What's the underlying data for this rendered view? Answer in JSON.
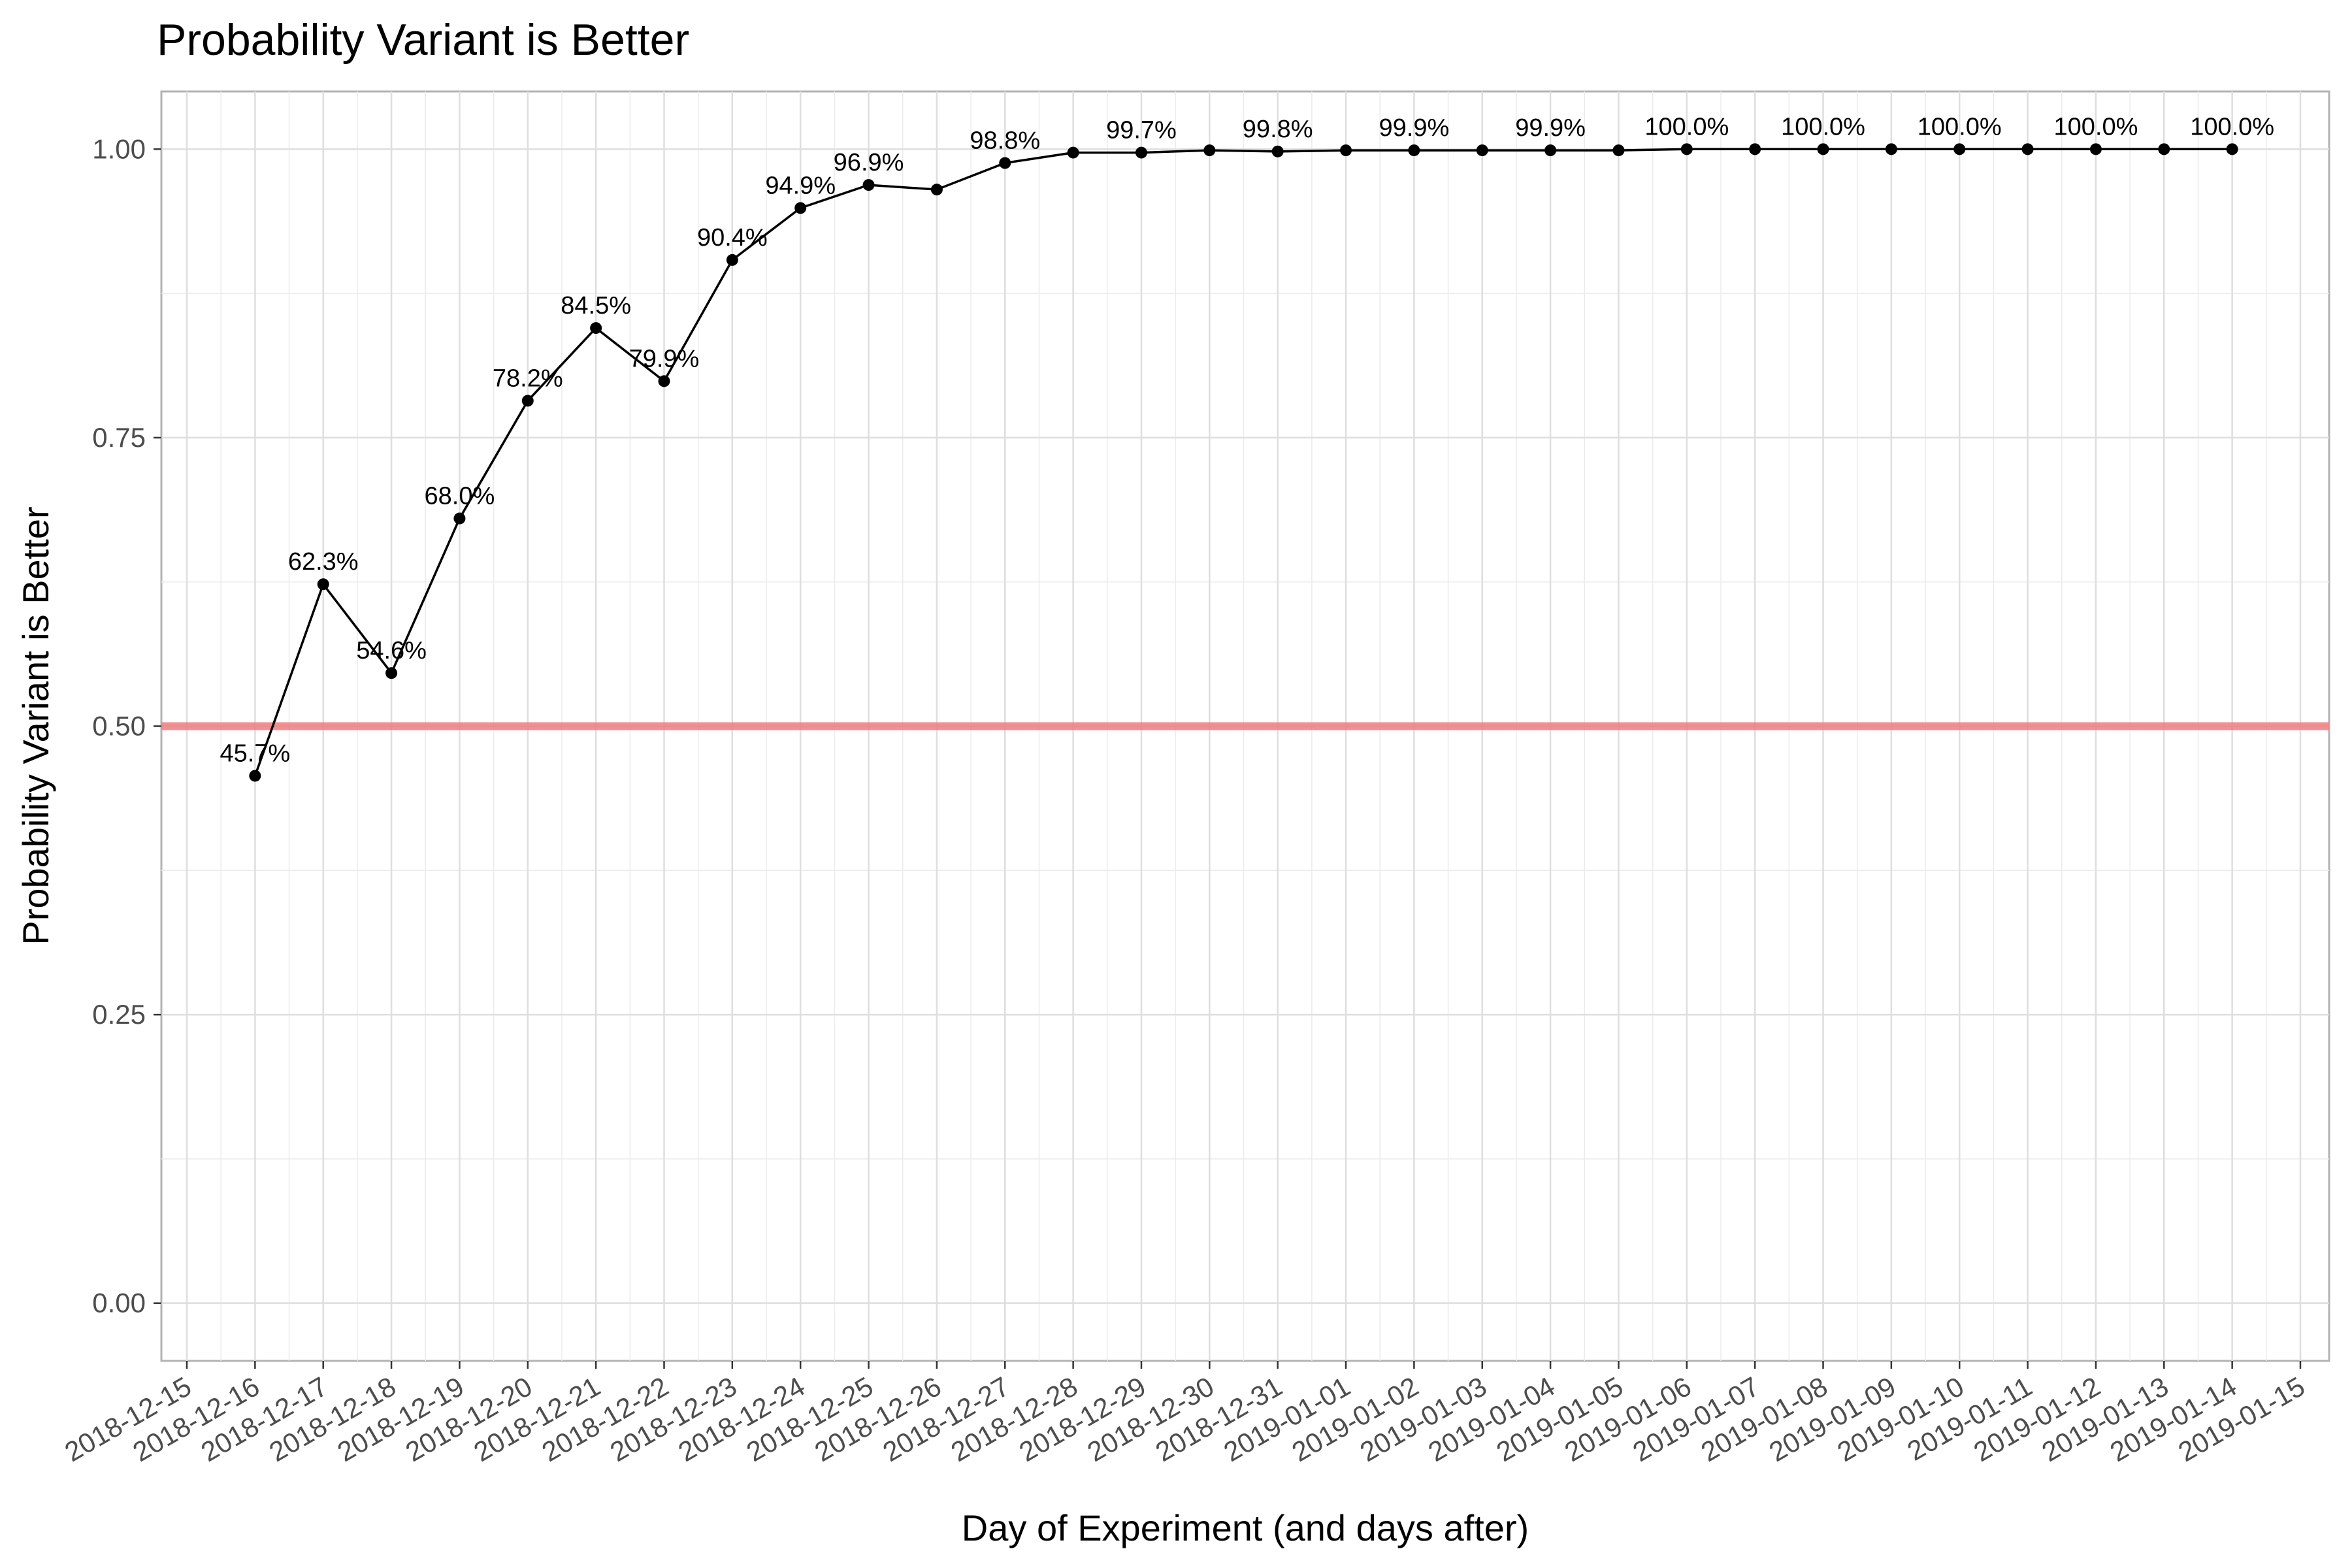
{
  "chart_data": {
    "type": "line",
    "title": "Probability Variant is Better",
    "xlabel": "Day of Experiment (and days after)",
    "ylabel": "Probability Variant is Better",
    "ylim": [
      -0.05,
      1.05
    ],
    "y_ticks": [
      "0.00",
      "0.25",
      "0.50",
      "0.75",
      "1.00"
    ],
    "x_ticks": [
      "2018-12-15",
      "2018-12-16",
      "2018-12-17",
      "2018-12-18",
      "2018-12-19",
      "2018-12-20",
      "2018-12-21",
      "2018-12-22",
      "2018-12-23",
      "2018-12-24",
      "2018-12-25",
      "2018-12-26",
      "2018-12-27",
      "2018-12-28",
      "2018-12-29",
      "2018-12-30",
      "2018-12-31",
      "2019-01-01",
      "2019-01-02",
      "2019-01-03",
      "2019-01-04",
      "2019-01-05",
      "2019-01-06",
      "2019-01-07",
      "2019-01-08",
      "2019-01-09",
      "2019-01-10",
      "2019-01-11",
      "2019-01-12",
      "2019-01-13",
      "2019-01-14",
      "2019-01-15"
    ],
    "grid": true,
    "reference_line": {
      "y": 0.5,
      "color": "#f07b7f"
    },
    "line_color": "#000000",
    "series": [
      {
        "x": [
          "2018-12-16",
          "2018-12-17",
          "2018-12-18",
          "2018-12-19",
          "2018-12-20",
          "2018-12-21",
          "2018-12-22",
          "2018-12-23",
          "2018-12-24",
          "2018-12-25",
          "2018-12-26",
          "2018-12-27",
          "2018-12-28",
          "2018-12-29",
          "2018-12-30",
          "2018-12-31",
          "2019-01-01",
          "2019-01-02",
          "2019-01-03",
          "2019-01-04",
          "2019-01-05",
          "2019-01-06",
          "2019-01-07",
          "2019-01-08",
          "2019-01-09",
          "2019-01-10",
          "2019-01-11",
          "2019-01-12",
          "2019-01-13",
          "2019-01-14"
        ],
        "values": [
          0.457,
          0.623,
          0.546,
          0.68,
          0.782,
          0.845,
          0.799,
          0.904,
          0.949,
          0.969,
          0.965,
          0.988,
          0.997,
          0.997,
          0.999,
          0.998,
          0.999,
          0.999,
          0.999,
          0.999,
          0.999,
          1.0,
          1.0,
          1.0,
          1.0,
          1.0,
          1.0,
          1.0,
          1.0,
          1.0
        ],
        "data_labels": [
          "45.7%",
          "62.3%",
          "54.6%",
          "68.0%",
          "78.2%",
          "84.5%",
          "79.9%",
          "90.4%",
          "94.9%",
          "96.9%",
          "",
          "98.8%",
          "",
          "99.7%",
          "",
          "99.8%",
          "",
          "99.9%",
          "",
          "99.9%",
          "",
          "100.0%",
          "",
          "100.0%",
          "",
          "100.0%",
          "",
          "100.0%",
          "",
          "100.0%"
        ]
      }
    ]
  }
}
